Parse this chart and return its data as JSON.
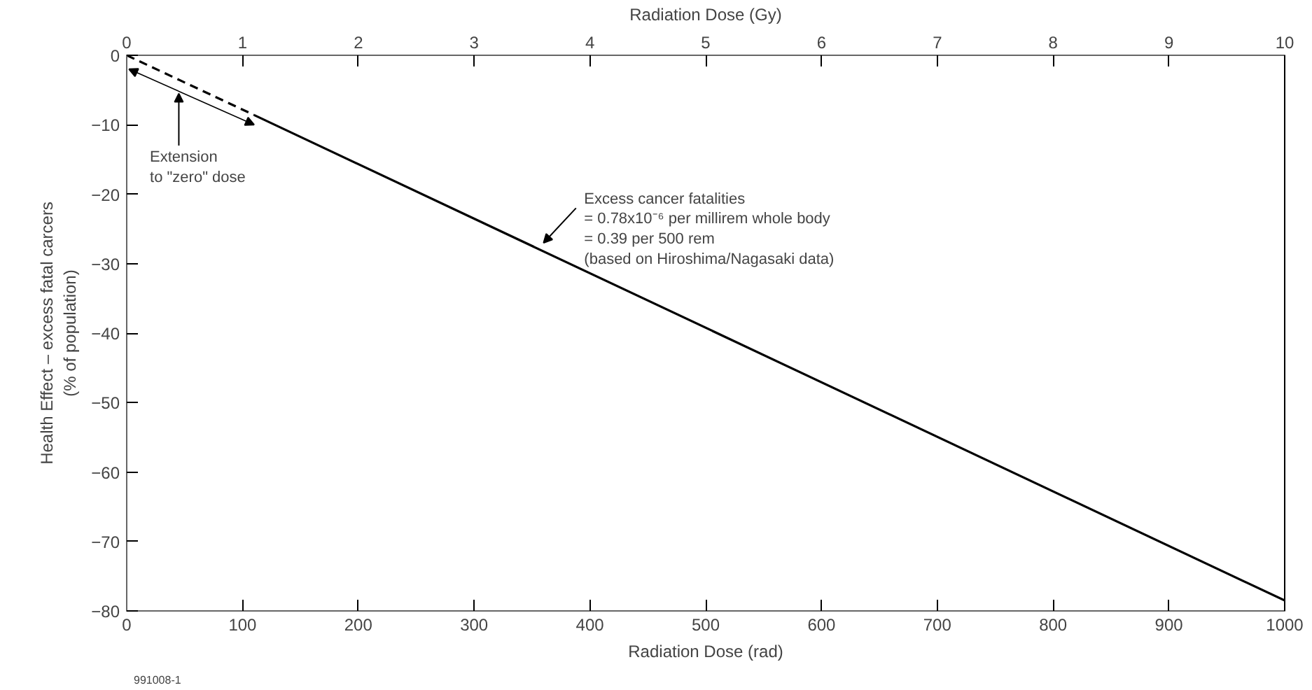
{
  "chart_data": {
    "type": "line",
    "xlabel": "Radiation Dose (rad)",
    "ylabel": "Health Effect – excess fatal carcers\n(% of population)",
    "x2label": "Radiation Dose (Gy)",
    "series": [
      {
        "color": "#000000",
        "line_style": "dashed",
        "x": [
          0,
          110
        ],
        "values": [
          0,
          -8.6
        ]
      },
      {
        "color": "#000000",
        "line_style": "solid",
        "x": [
          110,
          1000
        ],
        "values": [
          -8.6,
          -78.5
        ]
      }
    ],
    "xlim": [
      0,
      1000
    ],
    "xticks": [
      0,
      100,
      200,
      300,
      400,
      500,
      600,
      700,
      800,
      900,
      1000
    ],
    "x2lim": [
      0,
      10
    ],
    "x2ticks": [
      0,
      1,
      2,
      3,
      4,
      5,
      6,
      7,
      8,
      9,
      10
    ],
    "ylim": [
      -80,
      0
    ],
    "yticks": [
      0,
      -10,
      -20,
      -30,
      -40,
      -50,
      -60,
      -70,
      -80
    ],
    "grid": false,
    "marker": "none",
    "annotations": [
      "Extension\nto \"zero\" dose",
      "Excess cancer fatalities\n      = 0.78x10⁻⁶ per millirem whole body\n      = 0.39 per 500 rem\n(based on Hiroshima/Nagasaki data)",
      "991008-1"
    ]
  }
}
